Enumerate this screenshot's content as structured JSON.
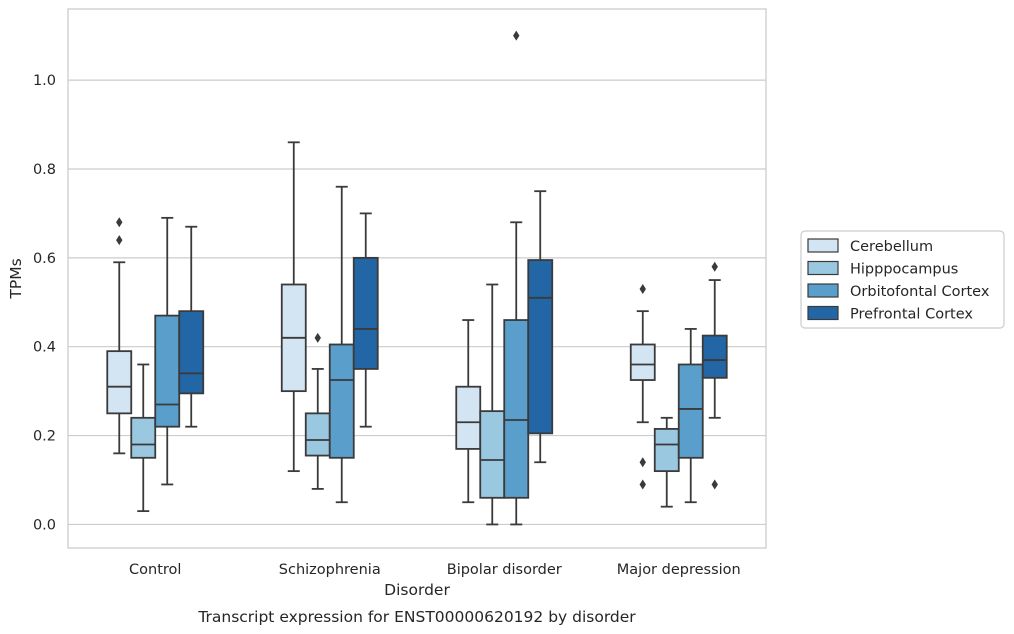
{
  "chart_data": {
    "type": "box",
    "caption": "Transcript expression for ENST00000620192 by disorder",
    "xlabel": "Disorder",
    "ylabel": "TPMs",
    "ylim": [
      -0.053,
      1.16
    ],
    "yticks": [
      "0.0",
      "0.2",
      "0.4",
      "0.6",
      "0.8",
      "1.0"
    ],
    "grid": "horizontal",
    "legend_position": "right",
    "categories": [
      "Control",
      "Schizophrenia",
      "Bipolar disorder",
      "Major depression"
    ],
    "series": [
      {
        "name": "Cerebellum",
        "color": "#d3e4f3",
        "boxes": [
          {
            "whisker_low": 0.16,
            "q1": 0.25,
            "median": 0.31,
            "q3": 0.39,
            "whisker_high": 0.59,
            "outliers": [
              0.64,
              0.68
            ]
          },
          {
            "whisker_low": 0.12,
            "q1": 0.3,
            "median": 0.42,
            "q3": 0.54,
            "whisker_high": 0.86,
            "outliers": []
          },
          {
            "whisker_low": 0.05,
            "q1": 0.17,
            "median": 0.23,
            "q3": 0.31,
            "whisker_high": 0.46,
            "outliers": []
          },
          {
            "whisker_low": 0.23,
            "q1": 0.325,
            "median": 0.36,
            "q3": 0.405,
            "whisker_high": 0.48,
            "outliers": [
              0.09,
              0.14,
              0.53
            ]
          }
        ]
      },
      {
        "name": "Hipppocampus",
        "color": "#9ac8e0",
        "boxes": [
          {
            "whisker_low": 0.03,
            "q1": 0.15,
            "median": 0.18,
            "q3": 0.24,
            "whisker_high": 0.36,
            "outliers": []
          },
          {
            "whisker_low": 0.08,
            "q1": 0.155,
            "median": 0.19,
            "q3": 0.25,
            "whisker_high": 0.35,
            "outliers": [
              0.42
            ]
          },
          {
            "whisker_low": 0.0,
            "q1": 0.06,
            "median": 0.145,
            "q3": 0.255,
            "whisker_high": 0.54,
            "outliers": []
          },
          {
            "whisker_low": 0.04,
            "q1": 0.12,
            "median": 0.18,
            "q3": 0.215,
            "whisker_high": 0.24,
            "outliers": []
          }
        ]
      },
      {
        "name": "Orbitofontal Cortex",
        "color": "#5a9fcb",
        "boxes": [
          {
            "whisker_low": 0.09,
            "q1": 0.22,
            "median": 0.27,
            "q3": 0.47,
            "whisker_high": 0.69,
            "outliers": []
          },
          {
            "whisker_low": 0.05,
            "q1": 0.15,
            "median": 0.325,
            "q3": 0.405,
            "whisker_high": 0.76,
            "outliers": []
          },
          {
            "whisker_low": 0.0,
            "q1": 0.06,
            "median": 0.235,
            "q3": 0.46,
            "whisker_high": 0.68,
            "outliers": [
              1.1
            ]
          },
          {
            "whisker_low": 0.05,
            "q1": 0.15,
            "median": 0.26,
            "q3": 0.36,
            "whisker_high": 0.44,
            "outliers": []
          }
        ]
      },
      {
        "name": "Prefrontal Cortex",
        "color": "#2366a6",
        "boxes": [
          {
            "whisker_low": 0.22,
            "q1": 0.295,
            "median": 0.34,
            "q3": 0.48,
            "whisker_high": 0.67,
            "outliers": []
          },
          {
            "whisker_low": 0.22,
            "q1": 0.35,
            "median": 0.44,
            "q3": 0.6,
            "whisker_high": 0.7,
            "outliers": []
          },
          {
            "whisker_low": 0.14,
            "q1": 0.205,
            "median": 0.51,
            "q3": 0.595,
            "whisker_high": 0.75,
            "outliers": []
          },
          {
            "whisker_low": 0.24,
            "q1": 0.33,
            "median": 0.37,
            "q3": 0.425,
            "whisker_high": 0.55,
            "outliers": [
              0.09,
              0.58
            ]
          }
        ]
      }
    ]
  }
}
